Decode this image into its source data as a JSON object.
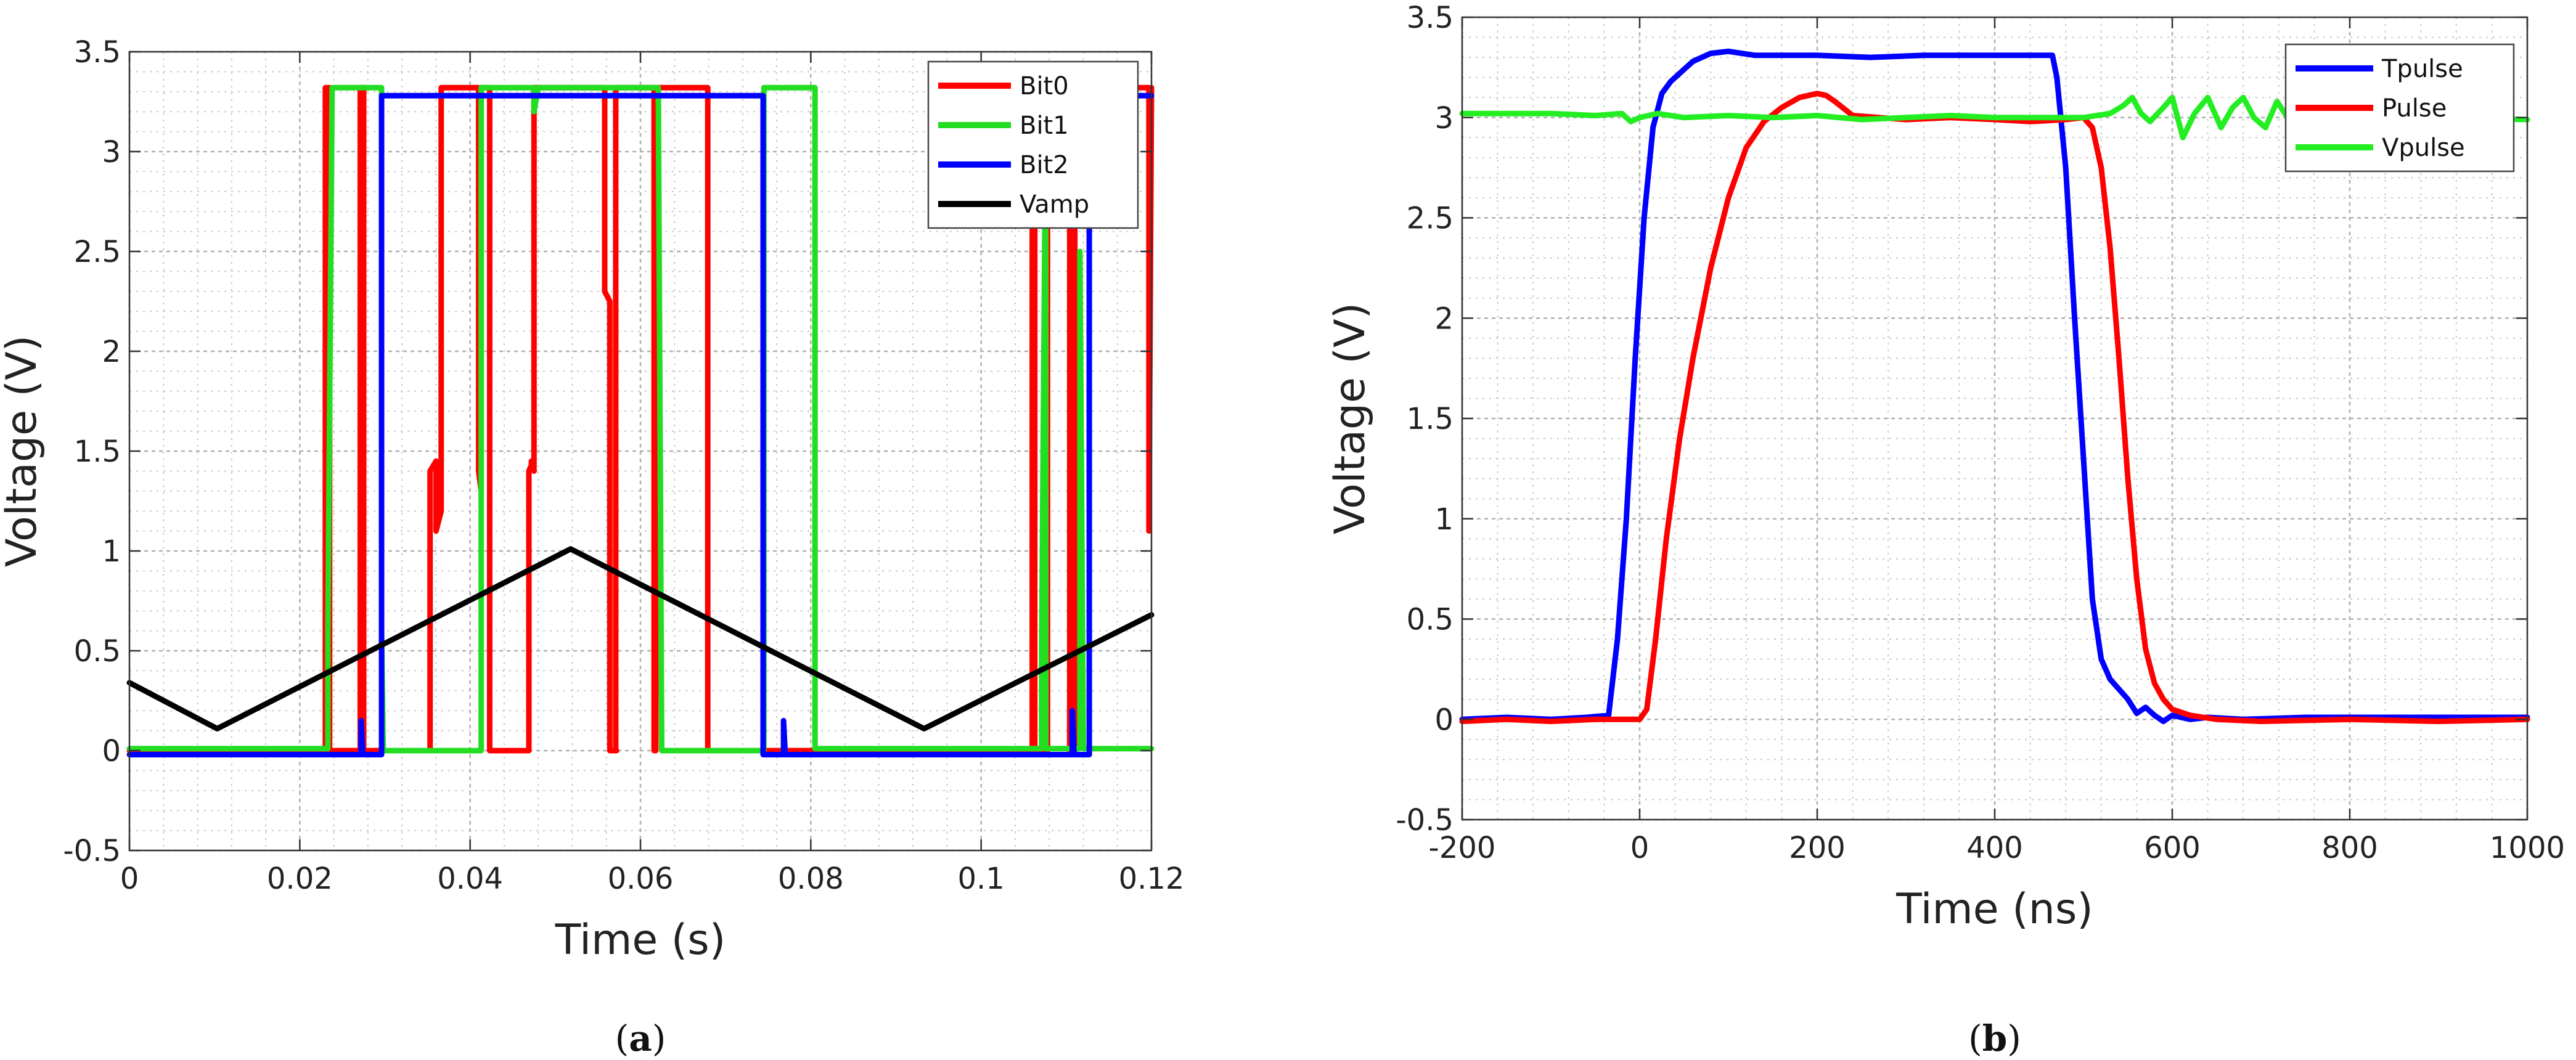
{
  "chart_data": [
    {
      "type": "line",
      "panel": "a",
      "caption_open": "(",
      "caption_letter": "a",
      "caption_close": ")",
      "xlabel": "Time (s)",
      "ylabel": "Voltage (V)",
      "xlim": [
        0,
        0.12
      ],
      "ylim": [
        -0.5,
        3.5
      ],
      "xticks": [
        0,
        0.02,
        0.04,
        0.06,
        0.08,
        0.1,
        0.12
      ],
      "xtick_labels": [
        "0",
        "0.02",
        "0.04",
        "0.06",
        "0.08",
        "0.1",
        "0.12"
      ],
      "yticks": [
        -0.5,
        0,
        0.5,
        1,
        1.5,
        2,
        2.5,
        3,
        3.5
      ],
      "ytick_labels": [
        "-0.5",
        "0",
        "0.5",
        "1",
        "1.5",
        "2",
        "2.5",
        "3",
        "3.5"
      ],
      "grid": true,
      "legend_position": "top-right",
      "series": [
        {
          "name": "Bit0",
          "color": "#ff0000",
          "x": [
            0,
            0.023,
            0.023,
            0.0235,
            0.0235,
            0.0271,
            0.0271,
            0.0275,
            0.0275,
            0.0353,
            0.0353,
            0.036,
            0.036,
            0.0366,
            0.0366,
            0.0369,
            0.0369,
            0.041,
            0.041,
            0.0413,
            0.0413,
            0.0423,
            0.0423,
            0.0469,
            0.0469,
            0.0472,
            0.0472,
            0.0475,
            0.0475,
            0.0488,
            0.0488,
            0.0558,
            0.0558,
            0.0564,
            0.0564,
            0.0572,
            0.0572,
            0.0566,
            0.0566,
            0.0568,
            0.0568,
            0.0571,
            0.0571,
            0.0616,
            0.0616,
            0.0618,
            0.0618,
            0.0679,
            0.0679,
            0.0681,
            0.0681,
            0.106,
            0.106,
            0.1063,
            0.1063,
            0.1078,
            0.1078,
            0.1104,
            0.1104,
            0.111,
            0.111,
            0.1197,
            0.1197,
            0.12
          ],
          "y": [
            0,
            0,
            3.32,
            3.32,
            0,
            0,
            3.32,
            3.32,
            0,
            0,
            1.4,
            1.45,
            1.1,
            1.2,
            3.32,
            3.32,
            3.32,
            3.32,
            1.4,
            1.3,
            3.32,
            3.32,
            0,
            0,
            1.4,
            1.43,
            1.45,
            1.4,
            3.32,
            3.32,
            3.32,
            3.32,
            2.3,
            2.25,
            0,
            0,
            0,
            0,
            0,
            0,
            0,
            0,
            3.32,
            3.32,
            0,
            0,
            3.32,
            3.32,
            0,
            0,
            0,
            0,
            3.32,
            3.32,
            0,
            0,
            3.32,
            3.32,
            0,
            0,
            3.32,
            3.32,
            1.1,
            3.32
          ]
        },
        {
          "name": "Bit1",
          "color": "#22dd22",
          "x": [
            0,
            0.0233,
            0.0233,
            0.0238,
            0.0238,
            0.0296,
            0.0296,
            0.0298,
            0.0298,
            0.0413,
            0.0413,
            0.0415,
            0.0415,
            0.0475,
            0.0475,
            0.048,
            0.048,
            0.0621,
            0.0621,
            0.0625,
            0.0625,
            0.0745,
            0.0745,
            0.0749,
            0.0749,
            0.0805,
            0.0805,
            0.0808,
            0.0808,
            0.1071,
            0.1071,
            0.1076,
            0.1076,
            0.1116,
            0.1116,
            0.112,
            0.112,
            0.12
          ],
          "y": [
            0.01,
            0.01,
            0.6,
            3.32,
            3.32,
            3.32,
            0.6,
            0,
            0,
            0,
            3.32,
            3.32,
            3.32,
            3.32,
            3.2,
            3.32,
            3.32,
            3.32,
            3.3,
            0,
            0,
            0,
            3.32,
            3.32,
            3.32,
            3.32,
            0.01,
            0.01,
            0.01,
            0.01,
            0.5,
            3.32,
            0.01,
            0.01,
            2.5,
            0.01,
            0.01,
            0.01
          ]
        },
        {
          "name": "Bit2",
          "color": "#0000ff",
          "x": [
            0,
            0.0272,
            0.0272,
            0.0274,
            0.0274,
            0.0296,
            0.0296,
            0.0744,
            0.0744,
            0.0768,
            0.0768,
            0.077,
            0.077,
            0.1107,
            0.1107,
            0.1109,
            0.1109,
            0.1127,
            0.1127,
            0.12
          ],
          "y": [
            -0.02,
            -0.02,
            0.15,
            -0.02,
            -0.02,
            -0.02,
            3.28,
            3.28,
            -0.02,
            -0.02,
            0.15,
            -0.02,
            -0.02,
            -0.02,
            0.2,
            -0.02,
            -0.02,
            -0.02,
            3.28,
            3.28
          ]
        },
        {
          "name": "Vamp",
          "color": "#000000",
          "x": [
            0,
            0.0103,
            0.0518,
            0.0933,
            0.12
          ],
          "y": [
            0.34,
            0.11,
            1.01,
            0.11,
            0.68
          ]
        }
      ]
    },
    {
      "type": "line",
      "panel": "b",
      "caption_open": "(",
      "caption_letter": "b",
      "caption_close": ")",
      "xlabel": "Time (ns)",
      "ylabel": "Voltage (V)",
      "xlim": [
        -200,
        1000
      ],
      "ylim": [
        -0.5,
        3.5
      ],
      "xticks": [
        -200,
        0,
        200,
        400,
        600,
        800,
        1000
      ],
      "xtick_labels": [
        "-200",
        "0",
        "200",
        "400",
        "600",
        "800",
        "1000"
      ],
      "yticks": [
        -0.5,
        0,
        0.5,
        1,
        1.5,
        2,
        2.5,
        3,
        3.5
      ],
      "ytick_labels": [
        "-0.5",
        "0",
        "0.5",
        "1",
        "1.5",
        "2",
        "2.5",
        "3",
        "3.5"
      ],
      "grid": true,
      "legend_position": "top-right",
      "series": [
        {
          "name": "Tpulse",
          "color": "#0000ff",
          "x": [
            -200,
            -150,
            -100,
            -60,
            -35,
            -25,
            -15,
            -5,
            5,
            15,
            25,
            35,
            45,
            60,
            70,
            80,
            100,
            130,
            160,
            200,
            260,
            320,
            380,
            440,
            465,
            470,
            480,
            490,
            500,
            510,
            520,
            530,
            540,
            550,
            560,
            570,
            580,
            590,
            600,
            610,
            620,
            640,
            680,
            750,
            850,
            1000
          ],
          "y": [
            0,
            0.01,
            0,
            0.01,
            0.02,
            0.4,
            1.0,
            1.8,
            2.5,
            2.95,
            3.12,
            3.18,
            3.22,
            3.28,
            3.3,
            3.32,
            3.33,
            3.31,
            3.31,
            3.31,
            3.3,
            3.31,
            3.31,
            3.31,
            3.31,
            3.2,
            2.75,
            2.0,
            1.3,
            0.6,
            0.3,
            0.2,
            0.15,
            0.1,
            0.03,
            0.06,
            0.02,
            -0.01,
            0.02,
            0.01,
            0.0,
            0.01,
            0.0,
            0.01,
            0.01,
            0.01
          ]
        },
        {
          "name": "Pulse",
          "color": "#ff0000",
          "x": [
            -200,
            -150,
            -100,
            -50,
            0,
            8,
            18,
            30,
            45,
            60,
            80,
            100,
            120,
            140,
            160,
            180,
            200,
            210,
            220,
            240,
            270,
            300,
            350,
            400,
            440,
            480,
            500,
            510,
            520,
            530,
            540,
            550,
            560,
            570,
            580,
            590,
            600,
            620,
            650,
            700,
            800,
            900,
            1000
          ],
          "y": [
            -0.01,
            0.0,
            -0.01,
            0.0,
            0.0,
            0.05,
            0.4,
            0.9,
            1.4,
            1.8,
            2.25,
            2.6,
            2.85,
            2.98,
            3.05,
            3.1,
            3.12,
            3.11,
            3.08,
            3.01,
            3.0,
            2.99,
            3.0,
            2.99,
            2.98,
            2.99,
            3.0,
            2.95,
            2.75,
            2.35,
            1.8,
            1.2,
            0.7,
            0.35,
            0.18,
            0.1,
            0.05,
            0.02,
            0.0,
            -0.01,
            0.0,
            -0.01,
            0.0
          ]
        },
        {
          "name": "Vpulse",
          "color": "#22ee22",
          "x": [
            -200,
            -150,
            -100,
            -50,
            -20,
            -10,
            0,
            20,
            50,
            100,
            150,
            200,
            250,
            300,
            350,
            400,
            450,
            500,
            530,
            545,
            555,
            565,
            575,
            590,
            600,
            612,
            625,
            640,
            655,
            668,
            680,
            692,
            705,
            718,
            730,
            745,
            760,
            775,
            800,
            850,
            900,
            1000
          ],
          "y": [
            3.02,
            3.02,
            3.02,
            3.01,
            3.02,
            2.98,
            3.0,
            3.02,
            3.0,
            3.01,
            3.0,
            3.01,
            2.99,
            3.0,
            3.01,
            3.0,
            3.0,
            3.0,
            3.02,
            3.06,
            3.1,
            3.02,
            2.98,
            3.05,
            3.1,
            2.9,
            3.02,
            3.1,
            2.95,
            3.05,
            3.1,
            3.0,
            2.95,
            3.08,
            3.0,
            2.95,
            3.0,
            3.02,
            2.99,
            3.0,
            3.0,
            2.99
          ]
        }
      ]
    }
  ]
}
